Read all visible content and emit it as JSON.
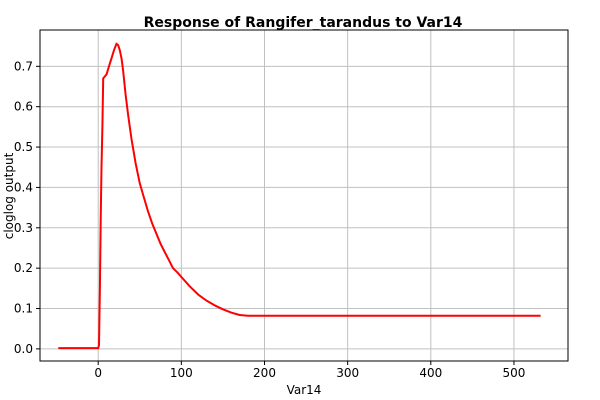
{
  "chart_data": {
    "type": "line",
    "title": "Response of Rangifer_tarandus to Var14",
    "xlabel": "Var14",
    "ylabel": "cloglog output",
    "xlim": [
      -70,
      565
    ],
    "ylim": [
      -0.03,
      0.79
    ],
    "xticks": [
      0,
      100,
      200,
      300,
      400,
      500
    ],
    "yticks": [
      0.0,
      0.1,
      0.2,
      0.3,
      0.4,
      0.5,
      0.6,
      0.7
    ],
    "ytick_labels": [
      "0.0",
      "0.1",
      "0.2",
      "0.3",
      "0.4",
      "0.5",
      "0.6",
      "0.7"
    ],
    "xtick_labels": [
      "0",
      "100",
      "200",
      "300",
      "400",
      "500"
    ],
    "grid": true,
    "series": [
      {
        "color": "#ff0000",
        "x": [
          -48,
          0,
          1,
          2,
          3,
          4,
          5,
          6,
          8,
          10,
          13,
          16,
          19,
          22,
          24,
          26,
          28,
          30,
          33,
          36,
          40,
          45,
          50,
          55,
          60,
          65,
          70,
          75,
          80,
          85,
          90,
          95,
          100,
          110,
          120,
          130,
          140,
          150,
          160,
          170,
          180,
          200,
          250,
          300,
          400,
          500,
          532
        ],
        "y": [
          0.002,
          0.002,
          0.01,
          0.15,
          0.32,
          0.45,
          0.55,
          0.67,
          0.675,
          0.68,
          0.7,
          0.72,
          0.74,
          0.756,
          0.752,
          0.74,
          0.72,
          0.69,
          0.63,
          0.58,
          0.52,
          0.46,
          0.41,
          0.375,
          0.34,
          0.31,
          0.285,
          0.26,
          0.24,
          0.22,
          0.2,
          0.19,
          0.178,
          0.155,
          0.135,
          0.12,
          0.108,
          0.098,
          0.09,
          0.084,
          0.082,
          0.082,
          0.082,
          0.082,
          0.082,
          0.082,
          0.082
        ]
      }
    ]
  },
  "colors": {
    "line": "#ff0000",
    "grid": "#c0c0c0",
    "frame": "#000000",
    "background": "#ffffff"
  }
}
